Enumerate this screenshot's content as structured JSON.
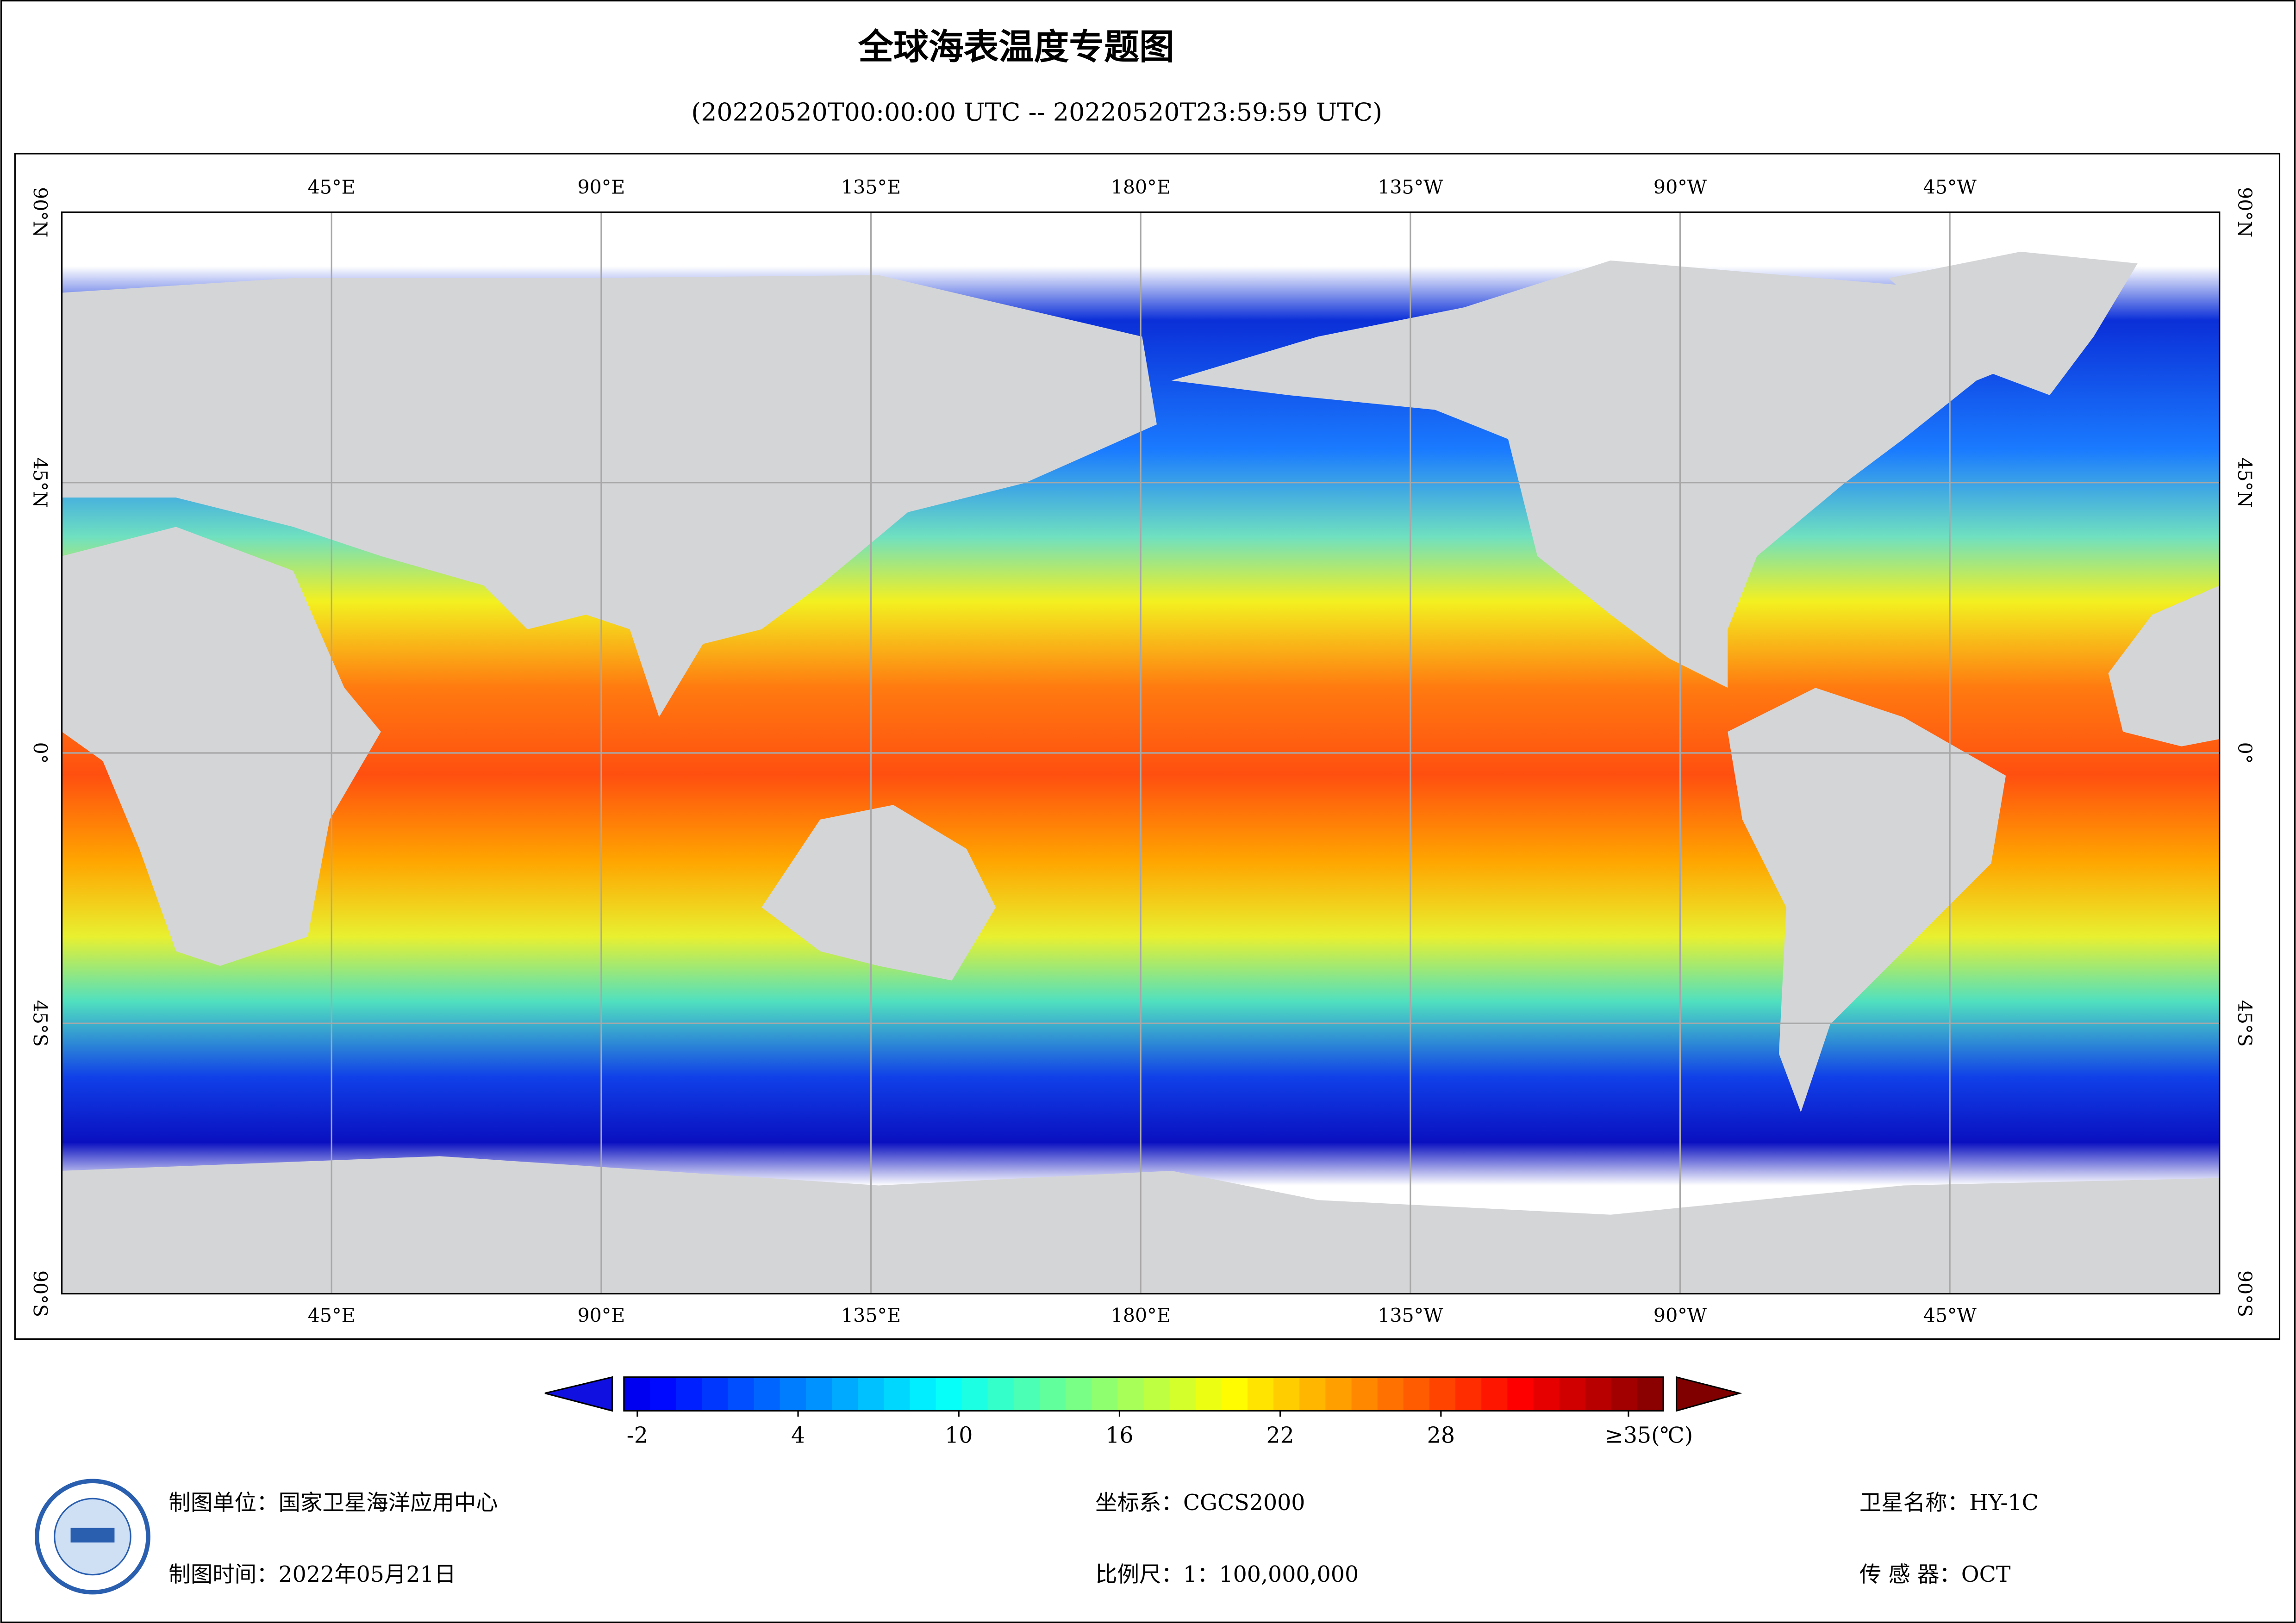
{
  "header": {
    "title": "全球海表温度专题图",
    "subtitle": "(20220520T00:00:00 UTC -- 20220520T23:59:59 UTC)"
  },
  "map": {
    "lon_labels": [
      "45°E",
      "90°E",
      "135°E",
      "180°E",
      "135°W",
      "90°W",
      "45°W"
    ],
    "lat_labels": [
      "90°N",
      "45°N",
      "0°",
      "45°S",
      "90°S"
    ]
  },
  "colorbar": {
    "lim": [
      -2.5,
      36.3
    ],
    "ticks": [
      -2,
      4,
      10,
      16,
      22,
      28,
      {
        "value": 35,
        "label": "≥35(℃)"
      }
    ]
  },
  "footer": {
    "unit": "制图单位：国家卫星海洋应用中心",
    "time": "制图时间：2022年05月21日",
    "crs": "坐标系：CGCS2000",
    "scale": "比例尺：1：100,000,000",
    "satellite": "卫星名称：HY-1C",
    "sensor": "传 感 器：OCT"
  }
}
